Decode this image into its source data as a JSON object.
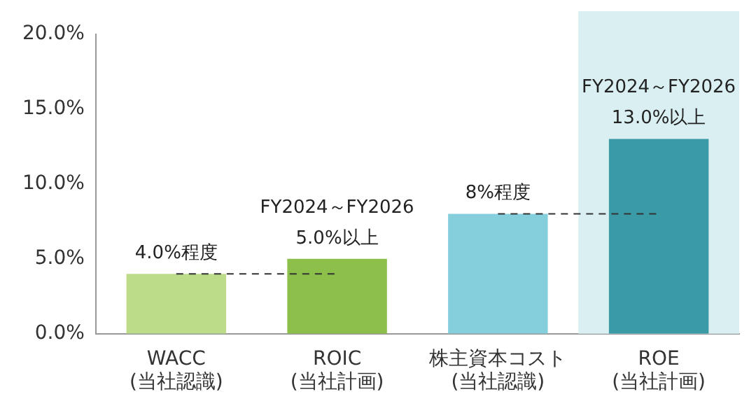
{
  "chart_data": {
    "type": "bar",
    "categories": [
      "WACC\n(当社認識)",
      "ROIC\n(当社計画)",
      "株主資本コスト\n(当社認識)",
      "ROE\n(当社計画)"
    ],
    "series": [
      {
        "colors": [
          "#bcdc8a",
          "#8cc04a",
          "#85cfdc",
          "#3a9aa6"
        ],
        "values": [
          4,
          5,
          8,
          13
        ],
        "value_labels": [
          "4.0%程度",
          "FY2024～FY2026\n5.0%以上",
          "8%程度",
          "FY2024～FY2026\n13.0%以上"
        ]
      },
      {
        "type": "line",
        "color": "#333333",
        "line_style": "dashed",
        "values": [
          4,
          4,
          null,
          null
        ]
      },
      {
        "type": "line",
        "color": "#333333",
        "line_style": "dashed",
        "values": [
          null,
          null,
          8,
          8
        ]
      }
    ],
    "ylim": [
      0,
      20
    ],
    "yticks": [
      {
        "value": 0,
        "label": "0.0%"
      },
      {
        "value": 5,
        "label": "5.0%"
      },
      {
        "value": 10,
        "label": "10.0%"
      },
      {
        "value": 15,
        "label": "15.0%"
      },
      {
        "value": 20,
        "label": "20.0%"
      }
    ],
    "bands": [
      {
        "axis": "x",
        "from": "ROE\n(当社計画)",
        "to": "ROE\n(当社計画)",
        "color": "#d9eff2"
      }
    ],
    "grid": false,
    "legend": false
  }
}
